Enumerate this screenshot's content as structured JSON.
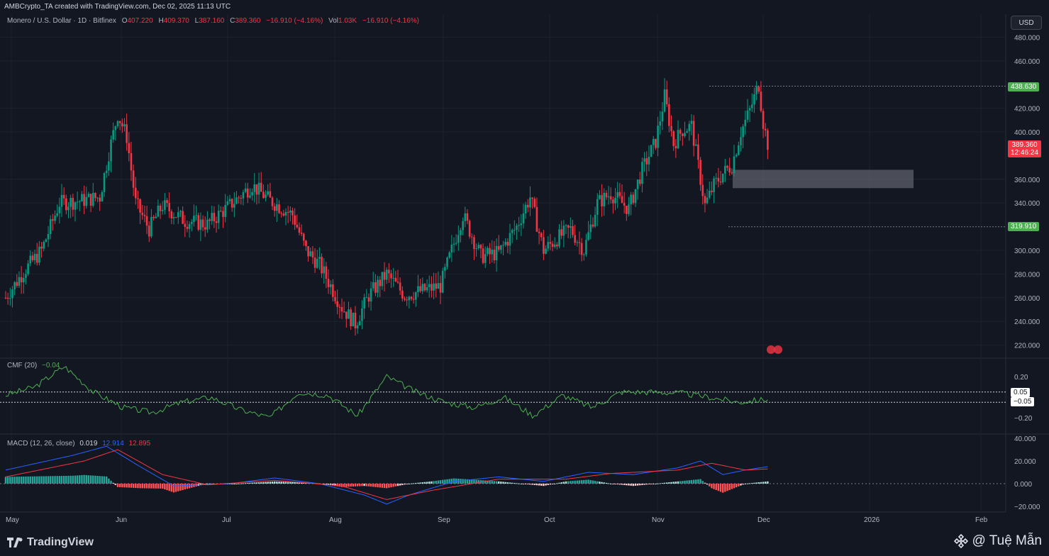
{
  "header": {
    "created_by": "AMBCrypto_TA created with TradingView.com, Dec 02, 2025 11:13 UTC"
  },
  "legend": {
    "symbol": "Monero / U.S. Dollar · 1D · Bitfinex",
    "o_label": "O",
    "o": "407.220",
    "h_label": "H",
    "h": "409.370",
    "l_label": "L",
    "l": "387.160",
    "c_label": "C",
    "c": "389.360",
    "change": "−16.910 (−4.16%)",
    "vol_label": "Vol",
    "vol": "1.03K",
    "vol_change": "−16.910 (−4.16%)"
  },
  "currency_button": "USD",
  "price_axis": [
    "480.000",
    "460.000",
    "420.000",
    "400.000",
    "360.000",
    "340.000",
    "300.000",
    "280.000",
    "260.000",
    "240.000",
    "220.000"
  ],
  "price_labels": {
    "high": "438.630",
    "current": "389.360",
    "countdown": "12:46:24",
    "low": "319.910"
  },
  "cmf": {
    "label": "CMF (20)",
    "value": "−0.04",
    "axis": [
      "0.20",
      "−0.20"
    ],
    "upper": "0.05",
    "lower": "−0.05"
  },
  "macd": {
    "label": "MACD (12, 26, close)",
    "hist": "0.019",
    "macd": "12.914",
    "signal": "12.895",
    "axis": [
      "40.000",
      "20.000",
      "0.000",
      "−20.000"
    ]
  },
  "time_axis": [
    "May",
    "Jun",
    "Jul",
    "Aug",
    "Sep",
    "Oct",
    "Nov",
    "Dec",
    "2026",
    "Feb"
  ],
  "footer": {
    "brand": "TradingView",
    "watermark": "@ Tuệ Mẫn"
  },
  "colors": {
    "up": "#089981",
    "down": "#f23645",
    "macd_line": "#2962ff",
    "signal_line": "#f23645",
    "cmf_line": "#4caf50",
    "bg": "#131722"
  }
}
